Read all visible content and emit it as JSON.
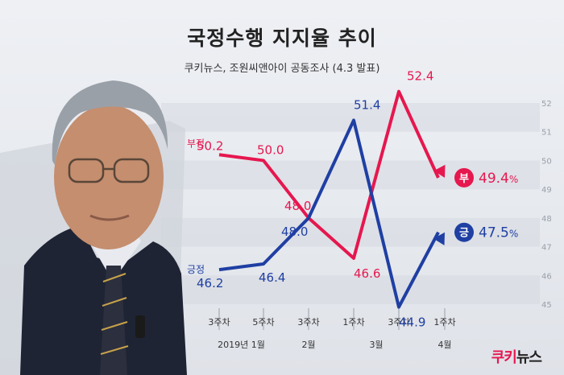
{
  "title": "국정수행 지지율 추이",
  "subtitle": "쿠키뉴스, 조원씨앤아이 공동조사 (4.3 발표)",
  "brand": {
    "part1": "쿠키",
    "part2": "뉴스"
  },
  "colors": {
    "negative": "#e6174f",
    "positive": "#1f3fa3",
    "band": "#d5d9e0"
  },
  "chart_data": {
    "type": "line",
    "x": [
      "3주차",
      "5주차",
      "3주차",
      "1주차",
      "3주차",
      "1주차"
    ],
    "month_groups": [
      "2019년 1월",
      "2월",
      "3월",
      "4월"
    ],
    "yticks": [
      "52",
      "51",
      "50",
      "49",
      "48",
      "47",
      "46",
      "45"
    ],
    "ylim": [
      45,
      52
    ],
    "series": [
      {
        "name": "부정",
        "color": "#e6174f",
        "values": [
          50.2,
          50.0,
          48.0,
          46.6,
          52.4,
          49.4
        ],
        "labels": [
          "50.2",
          "50.0",
          "48.0",
          "46.6",
          "52.4",
          "49.4"
        ]
      },
      {
        "name": "긍정",
        "color": "#1f3fa3",
        "values": [
          46.2,
          46.4,
          48.0,
          51.4,
          44.9,
          47.5
        ],
        "labels": [
          "46.2",
          "46.4",
          "48.0",
          "51.4",
          "44.9",
          "47.5"
        ]
      }
    ],
    "end_badges": {
      "negative": "부",
      "positive": "긍",
      "unit": "%"
    }
  }
}
